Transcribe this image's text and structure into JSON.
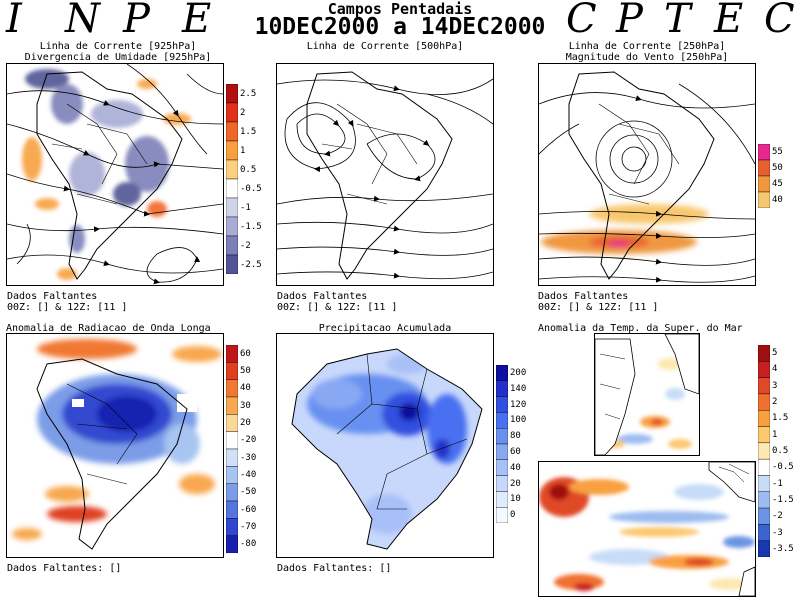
{
  "header": {
    "logo_left": [
      "I",
      "N",
      "P",
      "E"
    ],
    "logo_right": [
      "C",
      "P",
      "T",
      "E",
      "C"
    ],
    "title": "Campos Pentadais",
    "period": "10DEC2000 a 14DEC2000"
  },
  "panels": {
    "p925": {
      "caption_line1": "Linha de Corrente [925hPa]",
      "caption_line2": "Divergencia de Umidade [925hPa]",
      "missing_line1": "Dados Faltantes",
      "missing_line2": "00Z: [] & 12Z: [11 ]",
      "colorbar": {
        "labels": [
          "2.5",
          "2",
          "1.5",
          "1",
          "0.5",
          "-0.5",
          "-1",
          "-1.5",
          "-2",
          "-2.5"
        ],
        "colors": [
          "#b01010",
          "#e03018",
          "#f06828",
          "#f8a040",
          "#fcd080",
          "#ffffff",
          "#d0d4ea",
          "#a8acd4",
          "#7c80b8",
          "#505494"
        ]
      }
    },
    "p500": {
      "caption_line1": "Linha de Corrente [500hPa]",
      "missing_line1": "Dados Faltantes",
      "missing_line2": "00Z: [] & 12Z: [11 ]"
    },
    "p250": {
      "caption_line1": "Linha de Corrente [250hPa]",
      "caption_line2": "Magnitude do Vento [250hPa]",
      "missing_line1": "Dados Faltantes",
      "missing_line2": "00Z: [] & 12Z: [11 ]",
      "colorbar": {
        "labels": [
          "55",
          "50",
          "45",
          "40"
        ],
        "colors": [
          "#e82890",
          "#e86030",
          "#f09840",
          "#f8c870"
        ]
      }
    },
    "olr": {
      "caption_line1": "Anomalia de Radiacao de Onda Longa",
      "missing_line1": "Dados Faltantes: []",
      "colorbar": {
        "labels": [
          "60",
          "50",
          "40",
          "30",
          "20",
          "-20",
          "-30",
          "-40",
          "-50",
          "-60",
          "-70",
          "-80"
        ],
        "colors": [
          "#c01818",
          "#e04020",
          "#f07830",
          "#f8a850",
          "#fcd898",
          "#ffffff",
          "#d0e0f8",
          "#a8c4f0",
          "#7c9ce8",
          "#5474e0",
          "#3048d0",
          "#1820b0"
        ]
      }
    },
    "precip": {
      "caption_line1": "Precipitacao Acumulada",
      "missing_line1": "Dados Faltantes: []",
      "colorbar": {
        "labels": [
          "200",
          "140",
          "120",
          "100",
          "80",
          "60",
          "40",
          "20",
          "10",
          "0"
        ],
        "colors": [
          "#1010a0",
          "#2030c8",
          "#3050e0",
          "#4870f0",
          "#6890f0",
          "#88a8f4",
          "#a8c0f8",
          "#c8d8fc",
          "#e0ecfc",
          "#f4f8ff"
        ]
      }
    },
    "sst": {
      "caption_line1": "Anomalia da Temp. da Super. do Mar",
      "colorbar": {
        "labels": [
          "5",
          "4",
          "3",
          "2",
          "1.5",
          "1",
          "0.5",
          "-0.5",
          "-1",
          "-1.5",
          "-2",
          "-3",
          "-3.5"
        ],
        "colors": [
          "#a01010",
          "#c82020",
          "#e04828",
          "#f07030",
          "#f8a040",
          "#fcc870",
          "#fce8b0",
          "#ffffff",
          "#c8dcf8",
          "#9cbcf0",
          "#6c94e4",
          "#3c64d0",
          "#1838b0"
        ]
      }
    }
  }
}
